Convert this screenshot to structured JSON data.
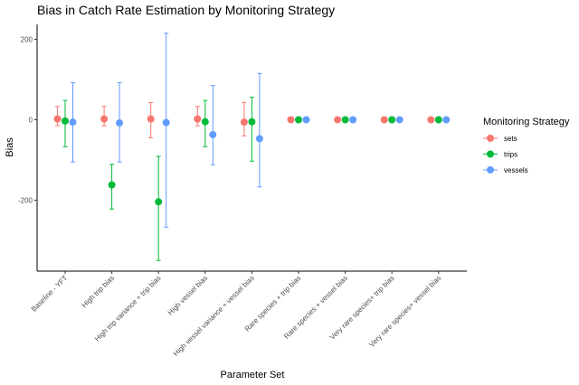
{
  "chart_data": {
    "type": "scatter",
    "title": "Bias in Catch Rate Estimation by Monitoring Strategy",
    "xlabel": "Parameter Set",
    "ylabel": "Bias",
    "categories": [
      "Baseline - YFT",
      "High trip bias",
      "High trip variance + trip bias",
      "High vessel bias",
      "High vessel variance + vessel bias",
      "Rare species + trip bias",
      "Rare species + vessel bias",
      "Very rare species+ trip bias",
      "Very rare species+ vessel bias"
    ],
    "yticks": [
      -200,
      0,
      200
    ],
    "ylim": [
      -380,
      225
    ],
    "legend": {
      "title": "Monitoring Strategy",
      "position": "right"
    },
    "series": [
      {
        "name": "sets",
        "color": "#F8766D",
        "values": [
          2,
          2,
          2,
          2,
          -6,
          0,
          0,
          0,
          0
        ],
        "lower": [
          -15,
          -15,
          -45,
          -15,
          -40,
          0,
          0,
          0,
          0
        ],
        "upper": [
          33,
          33,
          43,
          33,
          43,
          0,
          0,
          0,
          0
        ]
      },
      {
        "name": "trips",
        "color": "#00BA38",
        "values": [
          -3,
          -162,
          -204,
          -5,
          -5,
          0,
          0,
          0,
          0
        ],
        "lower": [
          -67,
          -222,
          -350,
          -67,
          -103,
          0,
          0,
          0,
          0
        ],
        "upper": [
          48,
          -111,
          -91,
          48,
          56,
          0,
          0,
          0,
          0
        ]
      },
      {
        "name": "vessels",
        "color": "#619CFF",
        "values": [
          -6,
          -8,
          -7,
          -37,
          -47,
          0,
          0,
          0,
          0
        ],
        "lower": [
          -105,
          -105,
          -267,
          -112,
          -167,
          0,
          0,
          0,
          0
        ],
        "upper": [
          92,
          92,
          215,
          85,
          115,
          0,
          0,
          0,
          0
        ]
      }
    ]
  }
}
